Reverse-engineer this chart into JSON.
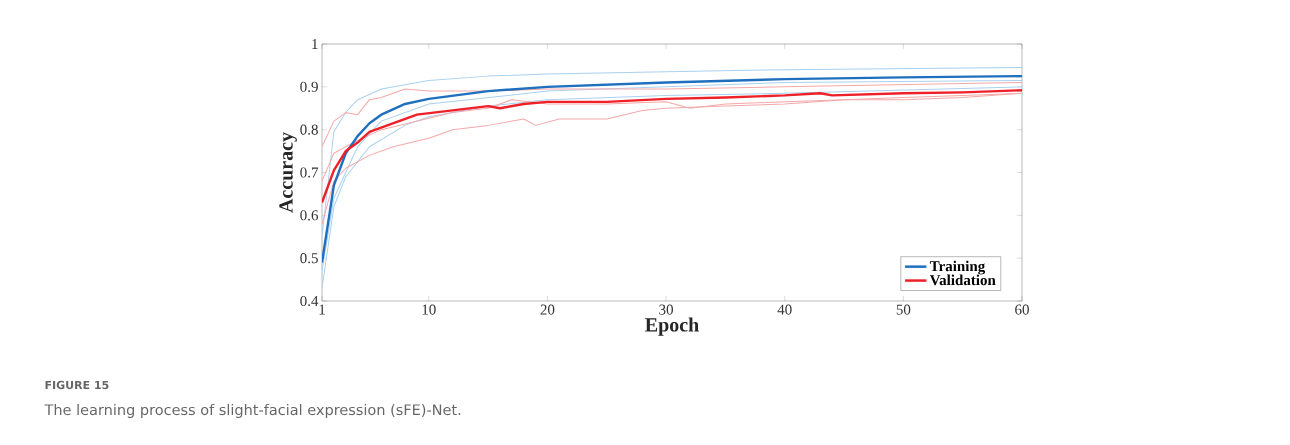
{
  "chart_data": {
    "type": "line",
    "xlabel": "Epoch",
    "ylabel": "Accuracy",
    "xlim": [
      1,
      60
    ],
    "ylim": [
      0.4,
      1
    ],
    "xticks": [
      1,
      10,
      20,
      30,
      40,
      50,
      60
    ],
    "yticks": [
      0.4,
      0.5,
      0.6,
      0.7,
      0.8,
      0.9,
      1
    ],
    "grid": false,
    "legend": "bottom right",
    "marker": "none",
    "line_style": "solid",
    "annotations": [
      "FIGURE 15",
      "The learning process of slight-facial expression (sFE)-Net."
    ],
    "series": [
      {
        "color": "#a9d1f0",
        "x": [
          1,
          2,
          3,
          4,
          6,
          10,
          15,
          20,
          30,
          40,
          60
        ],
        "values": [
          0.55,
          0.795,
          0.84,
          0.87,
          0.895,
          0.915,
          0.925,
          0.93,
          0.935,
          0.94,
          0.945
        ]
      },
      {
        "color": "#a9d1f0",
        "x": [
          1,
          2,
          3,
          5,
          8,
          10,
          15,
          20,
          30,
          40,
          60
        ],
        "values": [
          0.43,
          0.62,
          0.69,
          0.76,
          0.81,
          0.83,
          0.855,
          0.87,
          0.88,
          0.885,
          0.9
        ]
      },
      {
        "color": "#a9d1f0",
        "x": [
          1,
          2,
          4,
          6,
          10,
          20,
          40,
          60
        ],
        "values": [
          0.47,
          0.64,
          0.76,
          0.82,
          0.86,
          0.89,
          0.91,
          0.915
        ]
      },
      {
        "color": "#f5a8a8",
        "x": [
          1,
          2,
          3,
          4,
          5,
          6,
          8,
          10,
          15,
          20,
          30,
          40,
          50,
          60
        ],
        "values": [
          0.76,
          0.82,
          0.84,
          0.835,
          0.87,
          0.875,
          0.895,
          0.89,
          0.89,
          0.895,
          0.895,
          0.9,
          0.905,
          0.91
        ]
      },
      {
        "color": "#f5a8a8",
        "x": [
          1,
          2,
          3,
          5,
          7,
          10,
          12,
          15,
          18,
          19,
          21,
          25,
          28,
          30,
          35,
          40,
          45,
          50,
          55,
          60
        ],
        "values": [
          0.58,
          0.68,
          0.71,
          0.74,
          0.76,
          0.78,
          0.8,
          0.81,
          0.825,
          0.81,
          0.825,
          0.825,
          0.845,
          0.85,
          0.855,
          0.86,
          0.87,
          0.875,
          0.88,
          0.885
        ]
      },
      {
        "color": "#f5a8a8",
        "x": [
          1,
          2,
          4,
          6,
          9,
          12,
          15,
          17,
          20,
          25,
          30,
          32,
          35,
          40,
          45,
          50,
          55,
          60
        ],
        "values": [
          0.68,
          0.745,
          0.775,
          0.8,
          0.82,
          0.84,
          0.85,
          0.87,
          0.86,
          0.86,
          0.865,
          0.85,
          0.86,
          0.865,
          0.87,
          0.87,
          0.875,
          0.885
        ]
      },
      {
        "name": "Training",
        "color": "#1f6fbf",
        "x": [
          1,
          2,
          3,
          4,
          5,
          6,
          8,
          10,
          15,
          20,
          30,
          40,
          50,
          60
        ],
        "values": [
          0.49,
          0.67,
          0.745,
          0.785,
          0.815,
          0.835,
          0.86,
          0.872,
          0.89,
          0.9,
          0.91,
          0.918,
          0.922,
          0.925
        ]
      },
      {
        "name": "Validation",
        "color": "#ee2028",
        "x": [
          1,
          2,
          3,
          4,
          5,
          7,
          9,
          12,
          15,
          16,
          18,
          20,
          25,
          30,
          35,
          40,
          43,
          44,
          50,
          55,
          60
        ],
        "values": [
          0.63,
          0.705,
          0.75,
          0.77,
          0.795,
          0.815,
          0.835,
          0.845,
          0.855,
          0.85,
          0.86,
          0.865,
          0.865,
          0.872,
          0.875,
          0.88,
          0.885,
          0.88,
          0.885,
          0.887,
          0.892
        ]
      }
    ]
  }
}
